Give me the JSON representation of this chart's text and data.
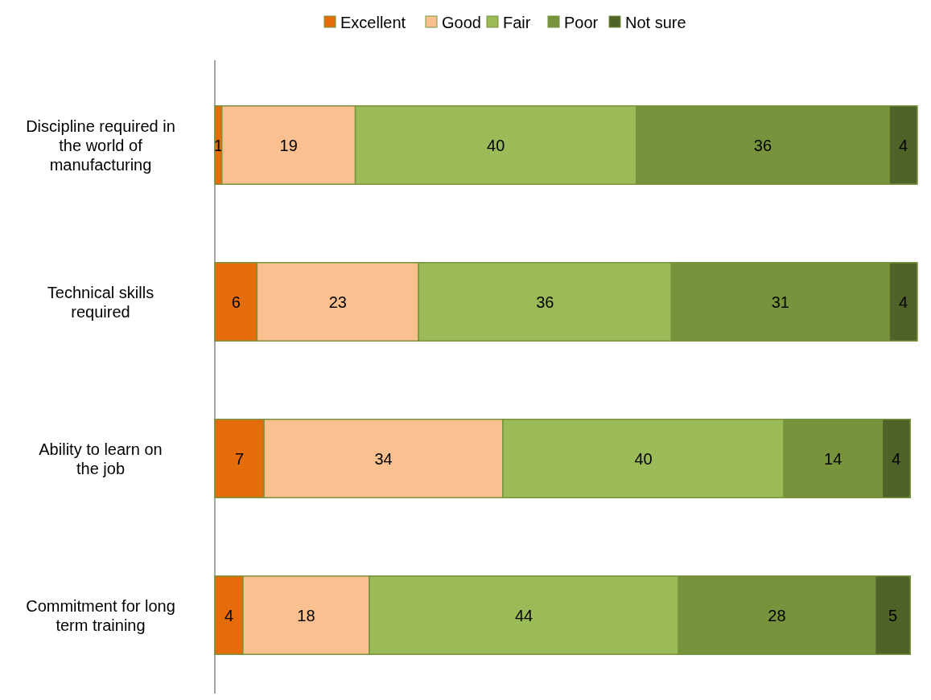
{
  "chart_data": {
    "type": "bar",
    "orientation": "horizontal",
    "stacked": true,
    "data_labels": true,
    "legend": "top",
    "categories": [
      "Discipline required in the world of manufacturing",
      "Technical skills required",
      "Ability to learn on the job",
      "Commitment for long term training"
    ],
    "series": [
      {
        "name": "Excellent",
        "color": "#e46c0a",
        "values": [
          1,
          6,
          7,
          4
        ]
      },
      {
        "name": "Good",
        "color": "#fac090",
        "values": [
          19,
          23,
          34,
          18
        ]
      },
      {
        "name": "Fair",
        "color": "#9bbb59",
        "values": [
          40,
          36,
          40,
          44
        ]
      },
      {
        "name": "Poor",
        "color": "#77933c",
        "values": [
          36,
          31,
          14,
          28
        ]
      },
      {
        "name": "Not sure",
        "color": "#4f6228",
        "values": [
          4,
          4,
          4,
          5
        ]
      }
    ]
  }
}
